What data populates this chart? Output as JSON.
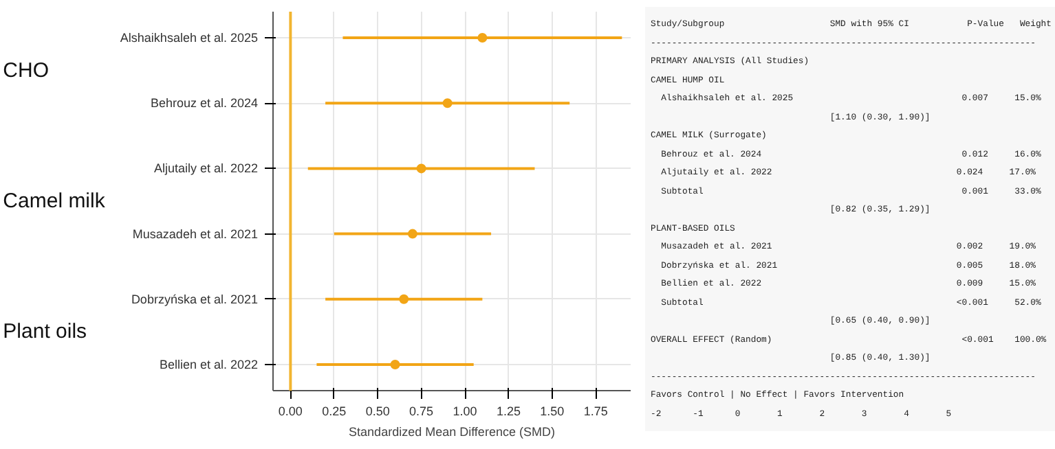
{
  "chart_data": [
    {
      "type": "scatter",
      "xlabel": "Standardized Mean Difference (SMD)",
      "categories": [
        "Alshaikhsaleh et al. 2025",
        "Behrouz et al. 2024",
        "Aljutaily et al. 2022",
        "Musazadeh et al. 2021",
        "Dobrzyńska et al. 2021",
        "Bellien et al. 2022"
      ],
      "values": [
        1.1,
        0.9,
        0.75,
        0.7,
        0.65,
        0.6
      ],
      "errors": [
        [
          0.3,
          1.9
        ],
        [
          0.2,
          1.6
        ],
        [
          0.1,
          1.4
        ],
        [
          0.25,
          1.15
        ],
        [
          0.2,
          1.1
        ],
        [
          0.15,
          1.05
        ]
      ],
      "orientation": "horizontal",
      "color": "#f2a516",
      "marker": "circle",
      "grid": true,
      "xlim": [
        -0.1,
        1.95
      ],
      "xticks": [
        {
          "value": 0,
          "label": "0.00"
        },
        {
          "value": 0.25,
          "label": "0.25"
        },
        {
          "value": 0.5,
          "label": "0.50"
        },
        {
          "value": 0.75,
          "label": "0.75"
        },
        {
          "value": 1,
          "label": "1.00"
        },
        {
          "value": 1.25,
          "label": "1.25"
        },
        {
          "value": 1.5,
          "label": "1.50"
        },
        {
          "value": 1.75,
          "label": "1.75"
        }
      ],
      "ref_lines": [
        {
          "axis": "x",
          "value": 0,
          "color": "#f2b530"
        }
      ],
      "annotations": [
        "CHO",
        "Camel milk",
        "Plant oils"
      ]
    },
    {
      "type": "other",
      "annotations": [
        "Study/Subgroup                    SMD with 95% CI           P-Value   Weight",
        "-------------------------------------------------------------------------",
        "PRIMARY ANALYSIS (All Studies)",
        "CAMEL HUMP OIL",
        "  Alshaikhsaleh et al. 2025                                0.007     15.0%",
        "                                  [1.10 (0.30, 1.90)]",
        "CAMEL MILK (Surrogate)",
        "  Behrouz et al. 2024                                      0.012     16.0%",
        "  Aljutaily et al. 2022                                   0.024     17.0%",
        "  Subtotal                                                 0.001     33.0%",
        "                                  [0.82 (0.35, 1.29)]",
        "PLANT-BASED OILS",
        "  Musazadeh et al. 2021                                   0.002     19.0%",
        "  Dobrzyńska et al. 2021                                  0.005     18.0%",
        "  Bellien et al. 2022                                     0.009     15.0%",
        "  Subtotal                                                <0.001     52.0%",
        "                                  [0.65 (0.40, 0.90)]",
        "OVERALL EFFECT (Random)                                    <0.001    100.0%",
        "                                  [0.85 (0.40, 1.30)]",
        "-------------------------------------------------------------------------",
        "Favors Control | No Effect | Favors Intervention",
        "-2      -1      0       1       2       3       4       5"
      ]
    }
  ]
}
